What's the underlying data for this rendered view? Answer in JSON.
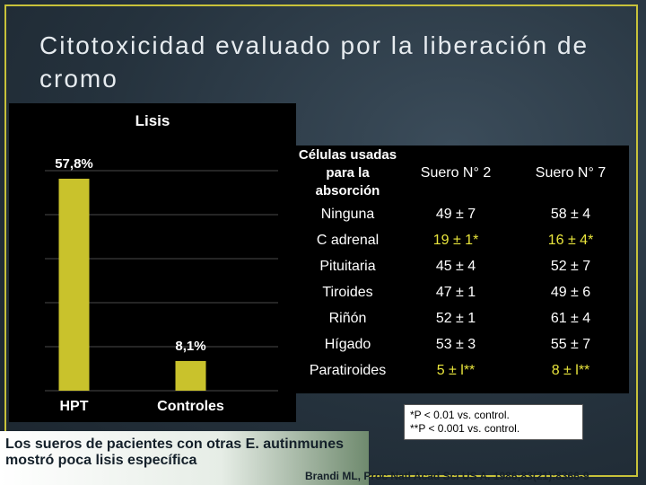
{
  "slide": {
    "title": "Citotoxicidad evaluado por la liberación de cromo"
  },
  "chart_data": {
    "type": "bar",
    "title": "Lisis",
    "categories": [
      "HPT",
      "Controles"
    ],
    "values": [
      57.8,
      8.1
    ],
    "value_labels": [
      "57,8%",
      "8,1%"
    ],
    "ylim": [
      0,
      60
    ],
    "grid": true,
    "bar_color": "#c9c22c"
  },
  "table": {
    "headers": [
      "Células usadas para la absorción",
      "Suero N° 2",
      "Suero N° 7"
    ],
    "rows": [
      [
        "Ninguna",
        "49 ± 7",
        "58 ± 4"
      ],
      [
        "C adrenal",
        "19 ± 1*",
        "16 ± 4*"
      ],
      [
        "Pituitaria",
        "45 ± 4",
        "52 ± 7"
      ],
      [
        "Tiroides",
        "47 ± 1",
        "49 ± 6"
      ],
      [
        "Riñón",
        "52 ± 1",
        "61 ± 4"
      ],
      [
        "Hígado",
        "53 ± 3",
        "55 ± 7"
      ],
      [
        "Paratiroides",
        "5 ± l**",
        "8 ± l**"
      ]
    ],
    "highlight_color": "#e8e43c"
  },
  "footnote": {
    "line1": "*P < 0.01 vs. control.",
    "line2": "**P < 0.001 vs. control."
  },
  "note": {
    "text": "Los sueros de pacientes con otras E. autinmunes mostró poca lisis  específica"
  },
  "citation": "Brandi ML, Proc Natl Acad Sci  US A. 1986;83(21):8366-9"
}
